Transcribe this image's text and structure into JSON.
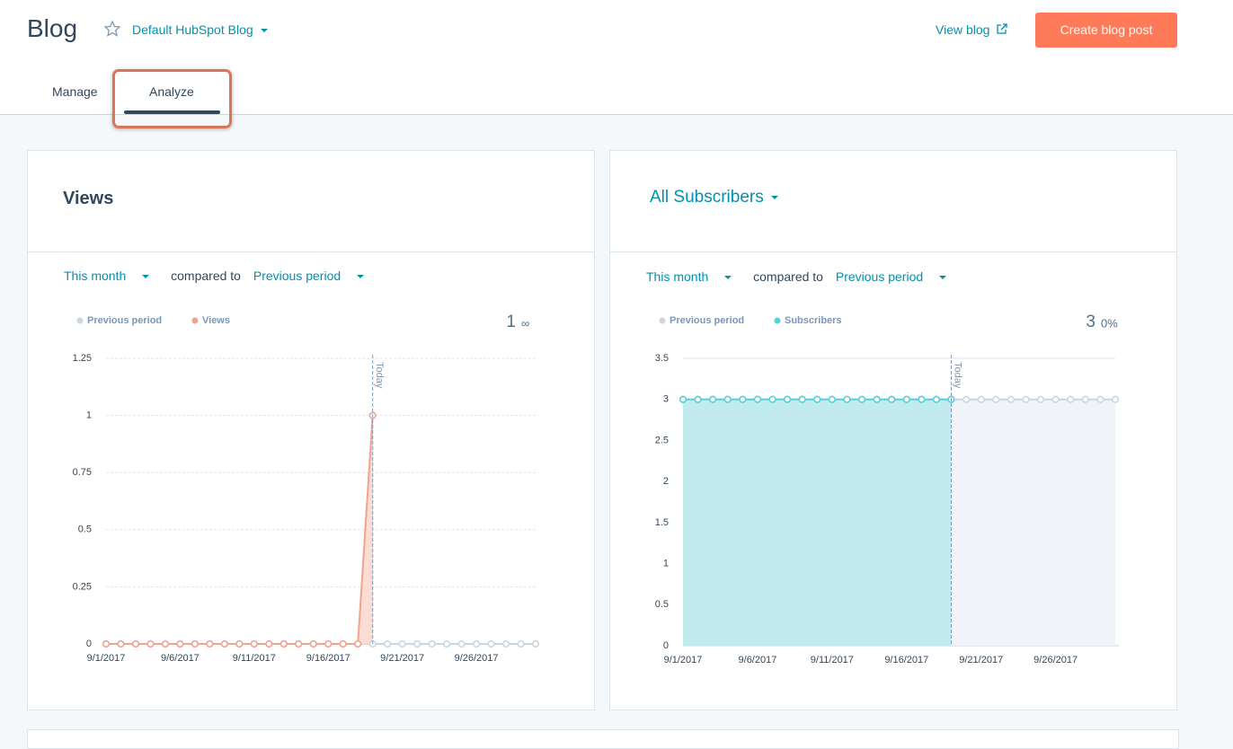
{
  "header": {
    "title": "Blog",
    "blog_selector": "Default HubSpot Blog",
    "view_link": "View blog",
    "create_button": "Create blog post"
  },
  "tabs": [
    "Manage",
    "Analyze"
  ],
  "chart_data": [
    {
      "type": "line",
      "title": "Views",
      "filters": {
        "period": "This month",
        "compare_text": "compared to",
        "compare": "Previous period"
      },
      "summary": {
        "value": 1,
        "change": "∞"
      },
      "annotation": "Today",
      "categories": [
        "9/1/2017",
        null,
        null,
        null,
        null,
        "9/6/2017",
        null,
        null,
        null,
        null,
        "9/11/2017",
        null,
        null,
        null,
        null,
        "9/16/2017",
        null,
        null,
        null,
        null,
        "9/21/2017",
        null,
        null,
        null,
        null,
        "9/26/2017",
        null,
        null,
        null,
        null
      ],
      "series": [
        {
          "name": "Previous period",
          "color": "#cbd6e2",
          "area": false,
          "values": [
            0,
            0,
            0,
            0,
            0,
            0,
            0,
            0,
            0,
            0,
            0,
            0,
            0,
            0,
            0,
            0,
            0,
            0,
            0,
            0,
            0,
            0,
            0,
            0,
            0,
            0,
            0,
            0,
            0,
            0
          ]
        },
        {
          "name": "Views",
          "color": "#f2a38d",
          "area": true,
          "values": [
            0,
            0,
            0,
            0,
            0,
            0,
            0,
            0,
            0,
            0,
            0,
            0,
            0,
            0,
            0,
            0,
            0,
            0,
            1,
            null,
            null,
            null,
            null,
            null,
            null,
            null,
            null,
            null,
            null,
            null
          ]
        }
      ],
      "ylim": [
        0,
        1.25
      ],
      "yticks": [
        0,
        0.25,
        0.5,
        0.75,
        1,
        1.25
      ],
      "grid": true
    },
    {
      "type": "area",
      "title": "All Subscribers",
      "filters": {
        "period": "This month",
        "compare_text": "compared to",
        "compare": "Previous period"
      },
      "summary": {
        "value": 3,
        "change": "0%"
      },
      "annotation": "Today",
      "categories": [
        "9/1/2017",
        null,
        null,
        null,
        null,
        "9/6/2017",
        null,
        null,
        null,
        null,
        "9/11/2017",
        null,
        null,
        null,
        null,
        "9/16/2017",
        null,
        null,
        null,
        null,
        "9/21/2017",
        null,
        null,
        null,
        null,
        "9/26/2017",
        null,
        null,
        null,
        null
      ],
      "series": [
        {
          "name": "Previous period",
          "color": "#cbd6e2",
          "area": true,
          "values": [
            3,
            3,
            3,
            3,
            3,
            3,
            3,
            3,
            3,
            3,
            3,
            3,
            3,
            3,
            3,
            3,
            3,
            3,
            3,
            3,
            3,
            3,
            3,
            3,
            3,
            3,
            3,
            3,
            3,
            3
          ]
        },
        {
          "name": "Subscribers",
          "color": "#51d3d9",
          "area": true,
          "values": [
            3,
            3,
            3,
            3,
            3,
            3,
            3,
            3,
            3,
            3,
            3,
            3,
            3,
            3,
            3,
            3,
            3,
            3,
            3,
            null,
            null,
            null,
            null,
            null,
            null,
            null,
            null,
            null,
            null,
            null
          ]
        }
      ],
      "ylim": [
        0,
        3.5
      ],
      "yticks": [
        0,
        0.5,
        1,
        1.5,
        2,
        2.5,
        3,
        3.5
      ],
      "grid": true
    }
  ]
}
